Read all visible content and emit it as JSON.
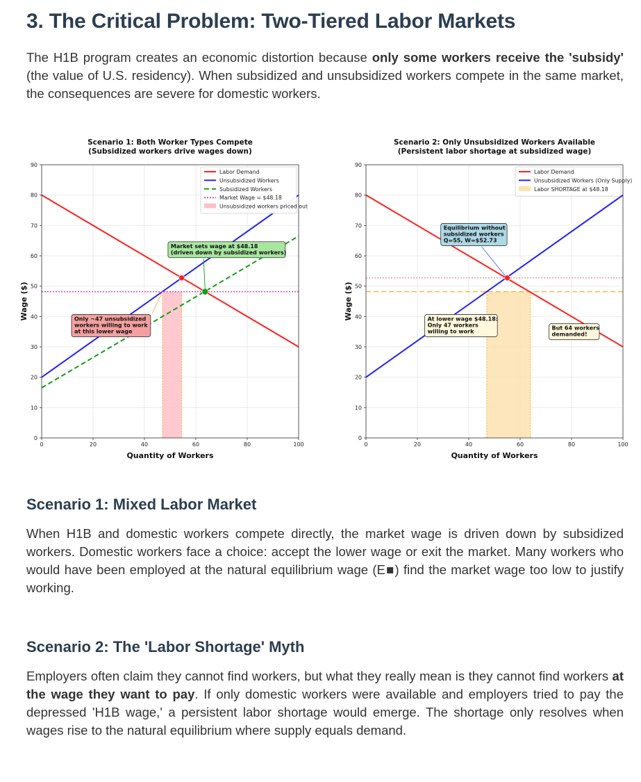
{
  "heading": "3. The Critical Problem: Two-Tiered Labor Markets",
  "intro": {
    "part1": "The H1B program creates an economic distortion because ",
    "bold1": "only some workers receive the 'subsidy'",
    "part2": " (the value of U.S. residency). When subsidized and unsubsidized workers compete in the same market, the consequences are severe for domestic workers."
  },
  "chart_data": [
    {
      "type": "line",
      "title": "Scenario 1: Both Worker Types Compete",
      "subtitle": "(Subsidized workers drive wages down)",
      "xlabel": "Quantity of Workers",
      "ylabel": "Wage ($)",
      "xlim": [
        0,
        100
      ],
      "ylim": [
        0,
        90
      ],
      "xticks": [
        0,
        20,
        40,
        60,
        80,
        100
      ],
      "yticks": [
        0,
        10,
        20,
        30,
        40,
        50,
        60,
        70,
        80,
        90
      ],
      "grid": true,
      "legend_position": "top-right",
      "series": [
        {
          "name": "Labor Demand",
          "color": "#ff2020",
          "style": "solid",
          "x": [
            0,
            100
          ],
          "y": [
            80,
            30
          ]
        },
        {
          "name": "Unsubsidized Workers",
          "color": "#2020ff",
          "style": "solid",
          "x": [
            0,
            100
          ],
          "y": [
            20,
            80
          ]
        },
        {
          "name": "Subsidized Workers",
          "color": "#1a9a1a",
          "style": "dashed",
          "x": [
            0,
            100
          ],
          "y": [
            16.5,
            66.5
          ]
        },
        {
          "name": "Market Wage = $48.18",
          "color": "#cc44cc",
          "style": "dotted",
          "x": [
            0,
            100
          ],
          "y": [
            48.18,
            48.18
          ]
        }
      ],
      "shaded": {
        "name": "Unsubsidized workers priced out",
        "color": "#ffc0c8",
        "x_range": [
          47,
          54.5
        ],
        "y_range": [
          0,
          48.18
        ]
      },
      "points": [
        {
          "x": 54.5,
          "y": 52.73,
          "color": "#ff2020"
        },
        {
          "x": 63.6,
          "y": 48.18,
          "color": "#1a9a1a"
        }
      ],
      "annotations": [
        {
          "lines": [
            "Market sets wage at $48.18",
            "(driven down by subsidized workers)"
          ],
          "bg": "#a8e6a0",
          "x": 72,
          "y": 62
        },
        {
          "lines": [
            "Only ~47 unsubsidized",
            "workers willing to work",
            "at this lower wage"
          ],
          "bg": "#f4a0a0",
          "x": 27,
          "y": 37
        }
      ]
    },
    {
      "type": "line",
      "title": "Scenario 2: Only Unsubsidized Workers Available",
      "subtitle": "(Persistent labor shortage at subsidized wage)",
      "xlabel": "Quantity of Workers",
      "ylabel": "Wage ($)",
      "xlim": [
        0,
        100
      ],
      "ylim": [
        0,
        90
      ],
      "xticks": [
        0,
        20,
        40,
        60,
        80,
        100
      ],
      "yticks": [
        0,
        10,
        20,
        30,
        40,
        50,
        60,
        70,
        80,
        90
      ],
      "grid": true,
      "legend_position": "top-right",
      "series": [
        {
          "name": "Labor Demand",
          "color": "#ff2020",
          "style": "solid",
          "x": [
            0,
            100
          ],
          "y": [
            80,
            30
          ]
        },
        {
          "name": "Unsubsidized Workers (Only Supply)",
          "color": "#2020ff",
          "style": "solid",
          "x": [
            0,
            100
          ],
          "y": [
            20,
            80
          ]
        }
      ],
      "hlines": [
        {
          "y": 52.73,
          "color": "#ff8080",
          "style": "dotted"
        },
        {
          "y": 48.18,
          "color": "#ffb020",
          "style": "dashed"
        }
      ],
      "shaded": {
        "name": "Labor SHORTAGE at $48.18",
        "color": "#fde2b0",
        "x_range": [
          47,
          64
        ],
        "y_range": [
          0,
          48.18
        ]
      },
      "points": [
        {
          "x": 55,
          "y": 52.73,
          "color": "#ff2020"
        }
      ],
      "annotations": [
        {
          "lines": [
            "Equilibrium without",
            "subsidized workers",
            "Q=55, W=$52.73"
          ],
          "bg": "#add8e6",
          "x": 42,
          "y": 67
        },
        {
          "lines": [
            "At lower wage $48.18:",
            "Only 47 workers",
            "willing to work"
          ],
          "bg": "#fff8dc",
          "x": 37,
          "y": 37
        },
        {
          "lines": [
            "But 64 workers",
            "demanded!"
          ],
          "bg": "#fff8dc",
          "x": 81,
          "y": 35
        }
      ]
    }
  ],
  "scenario1": {
    "heading": "Scenario 1: Mixed Labor Market",
    "text": "When H1B and domestic workers compete directly, the market wage is driven down by subsidized workers. Domestic workers face a choice: accept the lower wage or exit the market. Many workers who would have been employed at the natural equilibrium wage (E■) find the market wage too low to justify working."
  },
  "scenario2": {
    "heading": "Scenario 2: The 'Labor Shortage' Myth",
    "part1": "Employers often claim they cannot find workers, but what they really mean is they cannot find workers ",
    "bold1": "at the wage they want to pay",
    "part2": ". If only domestic workers were available and employers tried to pay the depressed 'H1B wage,' a persistent labor shortage would emerge. The shortage only resolves when wages rise to the natural equilibrium where supply equals demand."
  }
}
